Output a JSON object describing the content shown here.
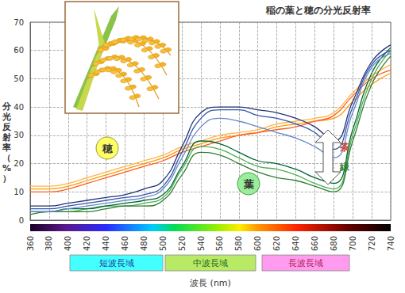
{
  "chart_data": {
    "type": "line",
    "title": "稲の葉と穂の分光反射率",
    "y_label": "分光反射率（%）",
    "x_label": "波長 (nm)",
    "annotations": {
      "panicle": "穂",
      "leaf": "葉",
      "brown": "茶",
      "green": "緑"
    },
    "bands": [
      "短波長域",
      "中波長域",
      "長波長域"
    ],
    "x": [
      360,
      380,
      400,
      420,
      440,
      460,
      480,
      500,
      520,
      540,
      560,
      580,
      600,
      620,
      640,
      660,
      680,
      700,
      720,
      740
    ],
    "series": [
      {
        "color": "#ff9900",
        "values": [
          11,
          11,
          12,
          14,
          16,
          18,
          20,
          22,
          25,
          27,
          29,
          30,
          31,
          33,
          34,
          35,
          36,
          42,
          48,
          52
        ]
      },
      {
        "color": "#ff5a1f",
        "values": [
          10,
          10,
          11,
          13,
          15,
          17,
          19,
          21,
          24,
          26,
          28,
          30,
          31,
          32,
          33,
          35,
          37,
          44,
          50,
          53
        ]
      },
      {
        "color": "#ffb347",
        "values": [
          12,
          12,
          13,
          15,
          17,
          19,
          21,
          23,
          26,
          28,
          30,
          31,
          32,
          34,
          35,
          36,
          38,
          45,
          51,
          55
        ]
      },
      {
        "color": "#4caf50",
        "values": [
          3,
          3,
          3,
          4,
          5,
          5,
          6,
          8,
          18,
          26,
          25,
          22,
          19,
          18,
          16,
          13,
          11,
          30,
          50,
          60
        ]
      },
      {
        "color": "#2e7d32",
        "values": [
          2,
          3,
          3,
          3,
          4,
          5,
          5,
          7,
          16,
          24,
          23,
          20,
          17,
          15,
          14,
          12,
          10,
          28,
          48,
          58
        ]
      },
      {
        "color": "#006633",
        "values": [
          3,
          3,
          4,
          4,
          5,
          6,
          7,
          9,
          19,
          28,
          27,
          24,
          21,
          20,
          18,
          15,
          13,
          32,
          52,
          61
        ]
      },
      {
        "color": "#3355aa",
        "values": [
          4,
          4,
          5,
          6,
          7,
          8,
          9,
          12,
          24,
          36,
          39,
          39,
          37,
          36,
          34,
          31,
          25,
          40,
          55,
          60
        ]
      },
      {
        "color": "#6688cc",
        "values": [
          3,
          3,
          4,
          5,
          6,
          7,
          8,
          11,
          22,
          33,
          36,
          35,
          33,
          31,
          29,
          26,
          22,
          38,
          54,
          59
        ]
      },
      {
        "color": "#223377",
        "values": [
          5,
          5,
          6,
          7,
          8,
          9,
          11,
          14,
          26,
          38,
          40,
          40,
          39,
          38,
          36,
          33,
          28,
          42,
          56,
          62
        ]
      }
    ],
    "xlim": [
      360,
      740
    ],
    "xticks": [
      360,
      380,
      400,
      420,
      440,
      460,
      480,
      500,
      520,
      540,
      560,
      580,
      600,
      620,
      640,
      660,
      680,
      700,
      720,
      740
    ],
    "ylim": [
      0,
      70
    ],
    "yticks": [
      0,
      10,
      20,
      30,
      40,
      50,
      60,
      70
    ],
    "grid": true
  }
}
